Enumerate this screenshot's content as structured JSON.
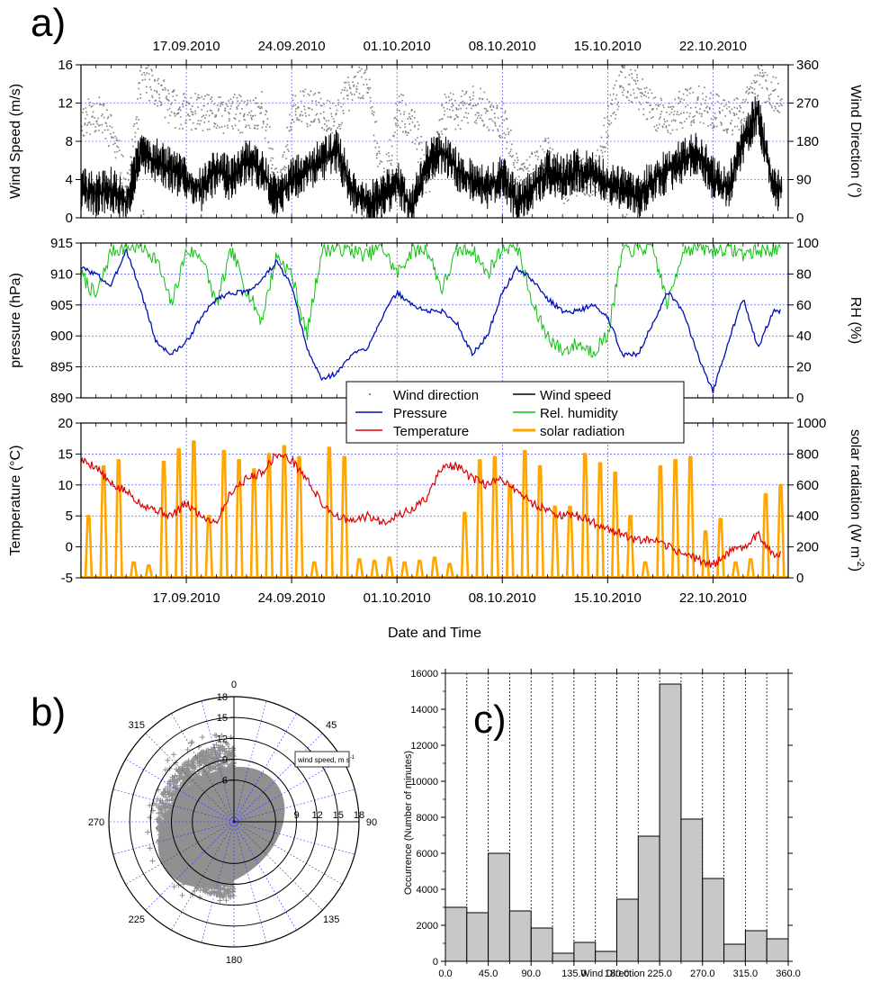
{
  "panel_labels": {
    "a": "a)",
    "b": "b)",
    "c": "c)"
  },
  "colors": {
    "wind_direction": "#808080",
    "wind_speed": "#000000",
    "pressure": "#0010b0",
    "rh": "#10c010",
    "temperature": "#e00000",
    "solar": "#ffa500",
    "grid": "#3333ff",
    "bar_fill": "#c8c8c8"
  },
  "chart_data": [
    {
      "id": "wind",
      "type": "line",
      "x_type": "date",
      "xlim": [
        "2010-09-10",
        "2010-10-27"
      ],
      "x_ticks": [
        "17.09.2010",
        "24.09.2010",
        "01.10.2010",
        "08.10.2010",
        "15.10.2010",
        "22.10.2010"
      ],
      "ylabel": "Wind Speed (m/s)",
      "ylim": [
        0,
        16
      ],
      "y_ticks": [
        "0",
        "4",
        "8",
        "12",
        "16"
      ],
      "y2label": "Wind Direction (°)",
      "y2lim": [
        0,
        360
      ],
      "y2_ticks": [
        "0",
        "90",
        "180",
        "270",
        "360"
      ],
      "grid": true,
      "series": [
        {
          "name": "Wind direction",
          "axis": "right",
          "style": "dots",
          "color": "#808080",
          "x": [
            "2010-09-10",
            "2010-09-11",
            "2010-09-12",
            "2010-09-13",
            "2010-09-14",
            "2010-09-15",
            "2010-09-16",
            "2010-09-17",
            "2010-09-18",
            "2010-09-19",
            "2010-09-20",
            "2010-09-21",
            "2010-09-22",
            "2010-09-23",
            "2010-09-24",
            "2010-09-25",
            "2010-09-26",
            "2010-09-27",
            "2010-09-28",
            "2010-09-29",
            "2010-09-30",
            "2010-10-01",
            "2010-10-02",
            "2010-10-03",
            "2010-10-04",
            "2010-10-05",
            "2010-10-06",
            "2010-10-07",
            "2010-10-08",
            "2010-10-09",
            "2010-10-10",
            "2010-10-11",
            "2010-10-12",
            "2010-10-13",
            "2010-10-14",
            "2010-10-15",
            "2010-10-16",
            "2010-10-17",
            "2010-10-18",
            "2010-10-19",
            "2010-10-20",
            "2010-10-21",
            "2010-10-22",
            "2010-10-23",
            "2010-10-24",
            "2010-10-25",
            "2010-10-26"
          ],
          "y": [
            230,
            250,
            200,
            60,
            340,
            300,
            260,
            250,
            250,
            240,
            250,
            240,
            260,
            60,
            250,
            260,
            250,
            240,
            320,
            330,
            60,
            260,
            220,
            80,
            250,
            250,
            270,
            250,
            230,
            90,
            120,
            150,
            80,
            100,
            90,
            240,
            330,
            300,
            250,
            240,
            260,
            270,
            250,
            240,
            250,
            330,
            290
          ]
        },
        {
          "name": "Wind speed",
          "axis": "left",
          "style": "line",
          "color": "#000000",
          "x": [
            "2010-09-10",
            "2010-09-11",
            "2010-09-12",
            "2010-09-13",
            "2010-09-14",
            "2010-09-15",
            "2010-09-16",
            "2010-09-17",
            "2010-09-18",
            "2010-09-19",
            "2010-09-20",
            "2010-09-21",
            "2010-09-22",
            "2010-09-23",
            "2010-09-24",
            "2010-09-25",
            "2010-09-26",
            "2010-09-27",
            "2010-09-28",
            "2010-09-29",
            "2010-09-30",
            "2010-10-01",
            "2010-10-02",
            "2010-10-03",
            "2010-10-04",
            "2010-10-05",
            "2010-10-06",
            "2010-10-07",
            "2010-10-08",
            "2010-10-09",
            "2010-10-10",
            "2010-10-11",
            "2010-10-12",
            "2010-10-13",
            "2010-10-14",
            "2010-10-15",
            "2010-10-16",
            "2010-10-17",
            "2010-10-18",
            "2010-10-19",
            "2010-10-20",
            "2010-10-21",
            "2010-10-22",
            "2010-10-23",
            "2010-10-24",
            "2010-10-25",
            "2010-10-26"
          ],
          "y": [
            3,
            2.5,
            3,
            1.5,
            7,
            6,
            5,
            4,
            3,
            5,
            4,
            6,
            5,
            2,
            4,
            5,
            6,
            7,
            3,
            1.5,
            2,
            4,
            1,
            6,
            7,
            5,
            4,
            3,
            4.5,
            1.5,
            3,
            5,
            4,
            5,
            4.5,
            3.5,
            3,
            2,
            4,
            5,
            6,
            7,
            4,
            3,
            8,
            11,
            3
          ]
        }
      ]
    },
    {
      "id": "pressure-rh",
      "type": "line",
      "x_type": "date",
      "xlim": [
        "2010-09-10",
        "2010-10-27"
      ],
      "ylabel": "pressure (hPa)",
      "ylim": [
        890,
        915
      ],
      "y_ticks": [
        "890",
        "895",
        "900",
        "905",
        "910",
        "915"
      ],
      "y2label": "RH (%)",
      "y2lim": [
        0,
        100
      ],
      "y2_ticks": [
        "0",
        "20",
        "40",
        "60",
        "80",
        "100"
      ],
      "grid": true,
      "series": [
        {
          "name": "Pressure",
          "axis": "left",
          "color": "#0010b0",
          "x": [
            "2010-09-10",
            "2010-09-11",
            "2010-09-12",
            "2010-09-13",
            "2010-09-14",
            "2010-09-15",
            "2010-09-16",
            "2010-09-17",
            "2010-09-18",
            "2010-09-19",
            "2010-09-20",
            "2010-09-21",
            "2010-09-22",
            "2010-09-23",
            "2010-09-24",
            "2010-09-25",
            "2010-09-26",
            "2010-09-27",
            "2010-09-28",
            "2010-09-29",
            "2010-09-30",
            "2010-10-01",
            "2010-10-02",
            "2010-10-03",
            "2010-10-04",
            "2010-10-05",
            "2010-10-06",
            "2010-10-07",
            "2010-10-08",
            "2010-10-09",
            "2010-10-10",
            "2010-10-11",
            "2010-10-12",
            "2010-10-13",
            "2010-10-14",
            "2010-10-15",
            "2010-10-16",
            "2010-10-17",
            "2010-10-18",
            "2010-10-19",
            "2010-10-20",
            "2010-10-21",
            "2010-10-22",
            "2010-10-23",
            "2010-10-24",
            "2010-10-25",
            "2010-10-26"
          ],
          "y": [
            911,
            910,
            908,
            914,
            907,
            899,
            897,
            899,
            903,
            906,
            907,
            907,
            909,
            912,
            908,
            898,
            893,
            894,
            897,
            898,
            903,
            907,
            905,
            904,
            904,
            902,
            897,
            900,
            907,
            911,
            909,
            906,
            904,
            904,
            905,
            903,
            897,
            897,
            902,
            907,
            904,
            897,
            891,
            899,
            906,
            898,
            904
          ]
        },
        {
          "name": "Rel. humidity",
          "axis": "right",
          "color": "#10c010",
          "x": [
            "2010-09-10",
            "2010-09-11",
            "2010-09-12",
            "2010-09-13",
            "2010-09-14",
            "2010-09-15",
            "2010-09-16",
            "2010-09-17",
            "2010-09-18",
            "2010-09-19",
            "2010-09-20",
            "2010-09-21",
            "2010-09-22",
            "2010-09-23",
            "2010-09-24",
            "2010-09-25",
            "2010-09-26",
            "2010-09-27",
            "2010-09-28",
            "2010-09-29",
            "2010-09-30",
            "2010-10-01",
            "2010-10-02",
            "2010-10-03",
            "2010-10-04",
            "2010-10-05",
            "2010-10-06",
            "2010-10-07",
            "2010-10-08",
            "2010-10-09",
            "2010-10-10",
            "2010-10-11",
            "2010-10-12",
            "2010-10-13",
            "2010-10-14",
            "2010-10-15",
            "2010-10-16",
            "2010-10-17",
            "2010-10-18",
            "2010-10-19",
            "2010-10-20",
            "2010-10-21",
            "2010-10-22",
            "2010-10-23",
            "2010-10-24",
            "2010-10-25",
            "2010-10-26"
          ],
          "y": [
            80,
            65,
            95,
            97,
            98,
            90,
            60,
            95,
            92,
            60,
            95,
            70,
            50,
            92,
            80,
            40,
            95,
            97,
            95,
            92,
            98,
            80,
            95,
            96,
            70,
            95,
            96,
            80,
            97,
            98,
            60,
            40,
            30,
            35,
            30,
            40,
            95,
            96,
            97,
            60,
            96,
            97,
            95,
            97,
            93,
            95,
            96
          ]
        }
      ],
      "legend": {
        "position": "lower-right",
        "entries": [
          "Wind direction",
          "Wind speed",
          "Pressure",
          "Rel. humidity",
          "Temperature",
          "solar radiation"
        ]
      }
    },
    {
      "id": "temp-solar",
      "type": "line",
      "x_type": "date",
      "xlim": [
        "2010-09-10",
        "2010-10-27"
      ],
      "x_ticks": [
        "17.09.2010",
        "24.09.2010",
        "01.10.2010",
        "08.10.2010",
        "15.10.2010",
        "22.10.2010"
      ],
      "xlabel": "Date and Time",
      "ylabel": "Temperature (°C)",
      "ylim": [
        -5,
        20
      ],
      "y_ticks": [
        "-5",
        "0",
        "5",
        "10",
        "15",
        "20"
      ],
      "y2label": "solar radiation (W m",
      "y2label_sup": "-2",
      "y2label_end": ")",
      "y2lim": [
        0,
        1000
      ],
      "y2_ticks": [
        "0",
        "200",
        "400",
        "600",
        "800",
        "1000"
      ],
      "grid": true,
      "series": [
        {
          "name": "Temperature",
          "axis": "left",
          "color": "#e00000",
          "x": [
            "2010-09-10",
            "2010-09-11",
            "2010-09-12",
            "2010-09-13",
            "2010-09-14",
            "2010-09-15",
            "2010-09-16",
            "2010-09-17",
            "2010-09-18",
            "2010-09-19",
            "2010-09-20",
            "2010-09-21",
            "2010-09-22",
            "2010-09-23",
            "2010-09-24",
            "2010-09-25",
            "2010-09-26",
            "2010-09-27",
            "2010-09-28",
            "2010-09-29",
            "2010-09-30",
            "2010-10-01",
            "2010-10-02",
            "2010-10-03",
            "2010-10-04",
            "2010-10-05",
            "2010-10-06",
            "2010-10-07",
            "2010-10-08",
            "2010-10-09",
            "2010-10-10",
            "2010-10-11",
            "2010-10-12",
            "2010-10-13",
            "2010-10-14",
            "2010-10-15",
            "2010-10-16",
            "2010-10-17",
            "2010-10-18",
            "2010-10-19",
            "2010-10-20",
            "2010-10-21",
            "2010-10-22",
            "2010-10-23",
            "2010-10-24",
            "2010-10-25",
            "2010-10-26"
          ],
          "y": [
            14,
            13,
            10,
            9,
            7,
            6,
            5,
            7,
            5,
            4,
            9,
            11,
            12,
            15,
            14,
            11,
            7,
            5,
            4,
            5,
            4,
            5,
            6,
            8,
            13,
            13,
            11,
            10,
            11,
            9,
            7,
            6,
            5,
            5,
            4,
            3,
            2,
            1,
            1,
            0,
            -1,
            -2,
            -3,
            -1,
            0,
            2,
            -1
          ]
        },
        {
          "name": "solar radiation",
          "axis": "right",
          "color": "#ffa500",
          "style": "daily-peaks",
          "x": [
            "2010-09-10",
            "2010-09-11",
            "2010-09-12",
            "2010-09-13",
            "2010-09-14",
            "2010-09-15",
            "2010-09-16",
            "2010-09-17",
            "2010-09-18",
            "2010-09-19",
            "2010-09-20",
            "2010-09-21",
            "2010-09-22",
            "2010-09-23",
            "2010-09-24",
            "2010-09-25",
            "2010-09-26",
            "2010-09-27",
            "2010-09-28",
            "2010-09-29",
            "2010-09-30",
            "2010-10-01",
            "2010-10-02",
            "2010-10-03",
            "2010-10-04",
            "2010-10-05",
            "2010-10-06",
            "2010-10-07",
            "2010-10-08",
            "2010-10-09",
            "2010-10-10",
            "2010-10-11",
            "2010-10-12",
            "2010-10-13",
            "2010-10-14",
            "2010-10-15",
            "2010-10-16",
            "2010-10-17",
            "2010-10-18",
            "2010-10-19",
            "2010-10-20",
            "2010-10-21",
            "2010-10-22",
            "2010-10-23",
            "2010-10-24",
            "2010-10-25",
            "2010-10-26"
          ],
          "y": [
            400,
            720,
            760,
            100,
            80,
            750,
            830,
            880,
            400,
            820,
            760,
            700,
            800,
            850,
            780,
            100,
            840,
            780,
            120,
            110,
            130,
            100,
            110,
            130,
            90,
            420,
            760,
            780,
            600,
            820,
            720,
            460,
            460,
            800,
            740,
            680,
            400,
            100,
            720,
            760,
            780,
            300,
            380,
            100,
            120,
            540,
            600
          ]
        }
      ]
    },
    {
      "id": "wind-rose",
      "type": "scatter",
      "projection": "polar",
      "angle_ticks": [
        "0",
        "45",
        "90",
        "135",
        "180",
        "225",
        "270",
        "315"
      ],
      "r_ticks": [
        "6",
        "9",
        "12",
        "15",
        "18"
      ],
      "r_axis_ticks": [
        "9",
        "12",
        "15",
        "18"
      ],
      "rlim": [
        0,
        18
      ],
      "r_label": "wind speed, m s",
      "r_label_sup": "-1",
      "marker": "+",
      "color": "#909090",
      "cloud": {
        "angle_range": [
          180,
          360
        ],
        "speed_range": [
          0,
          11
        ]
      }
    },
    {
      "id": "wind-histogram",
      "type": "bar",
      "xlabel": "Wind Direction",
      "ylabel": "Occurrence (Number of minutes)",
      "xlim": [
        0,
        360
      ],
      "ylim": [
        0,
        16000
      ],
      "x_ticks": [
        "0.0",
        "45.0",
        "90.0",
        "135.0",
        "180.0",
        "225.0",
        "270.0",
        "315.0",
        "360.0"
      ],
      "y_ticks": [
        "0",
        "2000",
        "4000",
        "6000",
        "8000",
        "10000",
        "12000",
        "14000",
        "16000"
      ],
      "bin_width": 22.5,
      "bin_starts": [
        0,
        22.5,
        45,
        67.5,
        90,
        112.5,
        135,
        157.5,
        180,
        202.5,
        225,
        247.5,
        270,
        292.5,
        315,
        337.5
      ],
      "values": [
        3000,
        2700,
        6000,
        2800,
        1850,
        450,
        1050,
        550,
        3450,
        6950,
        15400,
        7900,
        4600,
        950,
        1700,
        1250
      ]
    }
  ]
}
